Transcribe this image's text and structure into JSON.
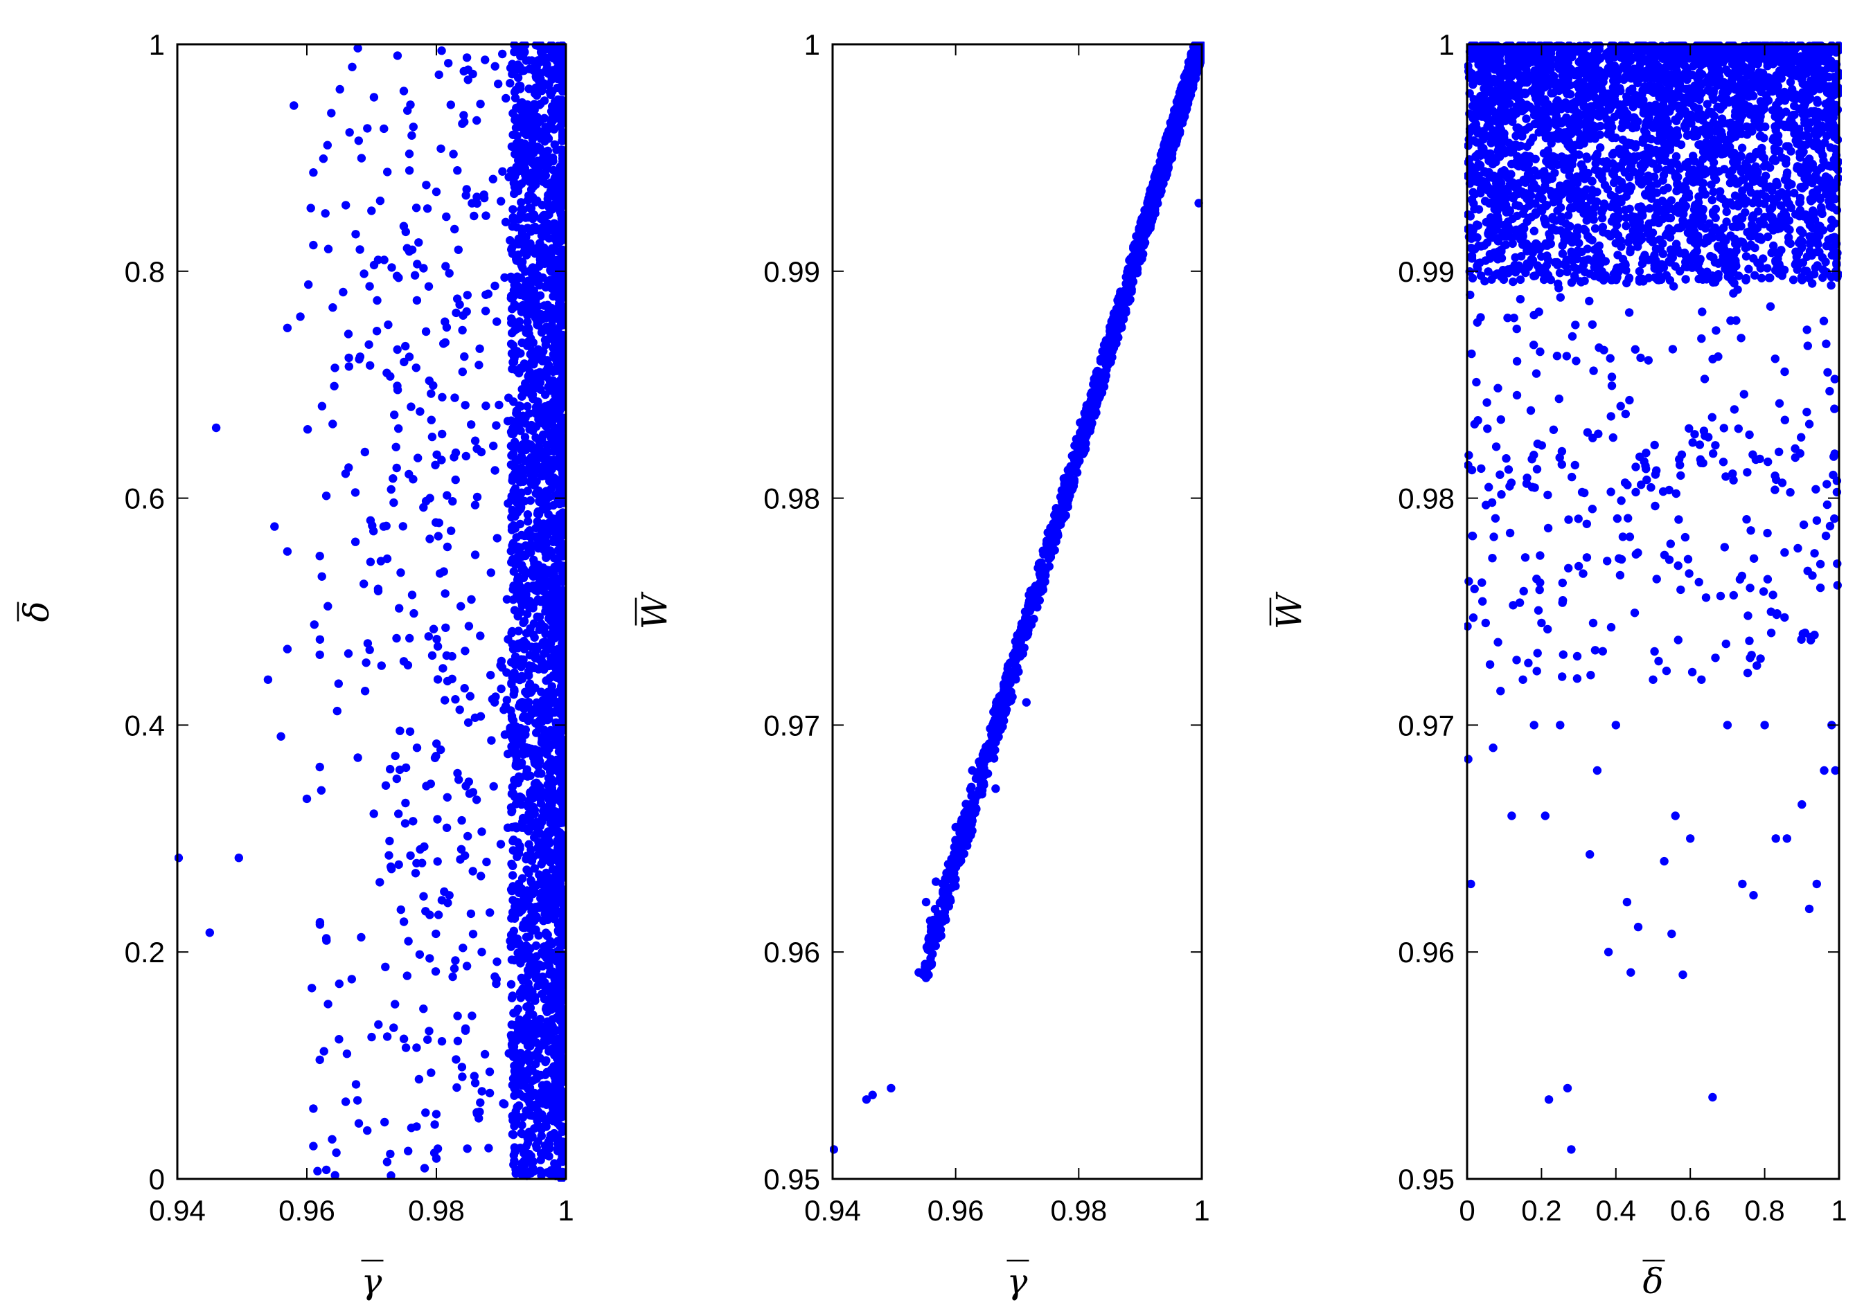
{
  "marker_color": "#0000ff",
  "chart_data": [
    {
      "type": "scatter",
      "xlabel": "γ",
      "ylabel": "δ",
      "xlabel_overbar": true,
      "ylabel_overbar": true,
      "xlim": [
        0.94,
        1.0
      ],
      "ylim": [
        0.0,
        1.0
      ],
      "xticks": [
        0.94,
        0.96,
        0.98,
        1.0
      ],
      "xtick_labels": [
        "0.94",
        "0.96",
        "0.98",
        "1"
      ],
      "yticks": [
        0.0,
        0.2,
        0.4,
        0.6,
        0.8,
        1.0
      ],
      "ytick_labels": [
        "0",
        "0.2",
        "0.4",
        "0.6",
        "0.8",
        "1"
      ],
      "grid": false,
      "distribution": "points dense for γ above 0.985 across full δ range, sparse toward 0.95",
      "points": [
        [
          0.9402,
          0.283
        ],
        [
          0.945,
          0.217
        ],
        [
          0.946,
          0.662
        ],
        [
          0.9495,
          0.283
        ],
        [
          0.954,
          0.44
        ],
        [
          0.955,
          0.575
        ],
        [
          0.956,
          0.39
        ],
        [
          0.957,
          0.467
        ],
        [
          0.957,
          0.553
        ],
        [
          0.957,
          0.75
        ],
        [
          0.958,
          0.946
        ],
        [
          0.959,
          0.76
        ],
        [
          0.96,
          0.335
        ],
        [
          0.961,
          0.062
        ],
        [
          0.961,
          0.823
        ],
        [
          0.961,
          0.887
        ],
        [
          0.962,
          0.549
        ],
        [
          0.962,
          0.462
        ],
        [
          0.962,
          0.363
        ],
        [
          0.962,
          0.105
        ],
        [
          0.963,
          0.602
        ],
        [
          0.963,
          0.212
        ],
        [
          0.963,
          0.008
        ],
        [
          0.964,
          0.768
        ],
        [
          0.965,
          0.172
        ],
        [
          0.966,
          0.068
        ],
        [
          0.967,
          0.98
        ],
        [
          0.968,
          0.915
        ],
        [
          0.969,
          0.43
        ],
        [
          0.97,
          0.125
        ],
        [
          0.971,
          0.81
        ],
        [
          0.971,
          0.52
        ],
        [
          0.972,
          0.05
        ],
        [
          0.973,
          0.003
        ],
        [
          0.974,
          0.99
        ],
        [
          0.975,
          0.72
        ],
        [
          0.976,
          0.285
        ],
        [
          0.977,
          0.38
        ],
        [
          0.978,
          0.15
        ],
        [
          0.979,
          0.6
        ],
        [
          0.98,
          0.87
        ],
        [
          0.98,
          0.018
        ],
        [
          0.981,
          0.45
        ],
        [
          0.982,
          0.25
        ],
        [
          0.983,
          0.64
        ],
        [
          0.984,
          0.93
        ],
        [
          0.984,
          0.09
        ],
        [
          0.985,
          0.35
        ],
        [
          0.986,
          0.55
        ],
        [
          0.987,
          0.2
        ],
        [
          0.988,
          0.78
        ],
        [
          0.989,
          0.42
        ]
      ]
    },
    {
      "type": "scatter",
      "xlabel": "γ",
      "ylabel": "W",
      "xlabel_overbar": true,
      "ylabel_overbar": true,
      "xlim": [
        0.94,
        1.0
      ],
      "ylim": [
        0.95,
        1.0
      ],
      "xticks": [
        0.94,
        0.96,
        0.98,
        1.0
      ],
      "xtick_labels": [
        "0.94",
        "0.96",
        "0.98",
        "1"
      ],
      "yticks": [
        0.95,
        0.96,
        0.97,
        0.98,
        0.99,
        1.0
      ],
      "ytick_labels": [
        "0.95",
        "0.96",
        "0.97",
        "0.98",
        "0.99",
        "1"
      ],
      "grid": false,
      "distribution": "points along a narrow band from (0.955, 0.959) to (1, 1)",
      "points": [
        [
          0.9402,
          0.9513
        ],
        [
          0.9455,
          0.9535
        ],
        [
          0.9465,
          0.9537
        ],
        [
          0.9495,
          0.954
        ],
        [
          0.954,
          0.9591
        ],
        [
          0.9547,
          0.959
        ],
        [
          0.9552,
          0.9622
        ],
        [
          0.956,
          0.9609
        ],
        [
          0.9568,
          0.9631
        ],
        [
          0.9585,
          0.9625
        ],
        [
          0.96,
          0.9655
        ],
        [
          0.962,
          0.966
        ],
        [
          0.9627,
          0.968
        ],
        [
          0.9645,
          0.9685
        ],
        [
          0.966,
          0.97
        ],
        [
          0.9665,
          0.9672
        ],
        [
          0.9685,
          0.971
        ],
        [
          0.9715,
          0.971
        ],
        [
          0.99,
          0.9906
        ],
        [
          0.9995,
          0.993
        ]
      ]
    },
    {
      "type": "scatter",
      "xlabel": "δ",
      "ylabel": "W",
      "xlabel_overbar": true,
      "ylabel_overbar": true,
      "xlim": [
        0.0,
        1.0
      ],
      "ylim": [
        0.95,
        1.0
      ],
      "xticks": [
        0.0,
        0.2,
        0.4,
        0.6,
        0.8,
        1.0
      ],
      "xtick_labels": [
        "0",
        "0.2",
        "0.4",
        "0.6",
        "0.8",
        "1"
      ],
      "yticks": [
        0.95,
        0.96,
        0.97,
        0.98,
        0.99,
        1.0
      ],
      "ytick_labels": [
        "0.95",
        "0.96",
        "0.97",
        "0.98",
        "0.99",
        "1"
      ],
      "grid": false,
      "distribution": "points dense for W above 0.99 across full δ range, sparse toward 0.95",
      "points": [
        [
          0.003,
          0.9685
        ],
        [
          0.01,
          0.963
        ],
        [
          0.02,
          0.976
        ],
        [
          0.05,
          0.9745
        ],
        [
          0.07,
          0.969
        ],
        [
          0.09,
          0.9715
        ],
        [
          0.12,
          0.966
        ],
        [
          0.15,
          0.972
        ],
        [
          0.18,
          0.97
        ],
        [
          0.2,
          0.9745
        ],
        [
          0.21,
          0.966
        ],
        [
          0.22,
          0.9535
        ],
        [
          0.25,
          0.97
        ],
        [
          0.27,
          0.954
        ],
        [
          0.28,
          0.9513
        ],
        [
          0.3,
          0.977
        ],
        [
          0.33,
          0.9643
        ],
        [
          0.35,
          0.968
        ],
        [
          0.38,
          0.96
        ],
        [
          0.4,
          0.97
        ],
        [
          0.43,
          0.9622
        ],
        [
          0.44,
          0.9591
        ],
        [
          0.46,
          0.9611
        ],
        [
          0.5,
          0.972
        ],
        [
          0.53,
          0.964
        ],
        [
          0.55,
          0.9608
        ],
        [
          0.56,
          0.966
        ],
        [
          0.58,
          0.959
        ],
        [
          0.6,
          0.965
        ],
        [
          0.63,
          0.972
        ],
        [
          0.66,
          0.9536
        ],
        [
          0.7,
          0.97
        ],
        [
          0.74,
          0.963
        ],
        [
          0.77,
          0.9625
        ],
        [
          0.8,
          0.97
        ],
        [
          0.83,
          0.965
        ],
        [
          0.86,
          0.965
        ],
        [
          0.9,
          0.9665
        ],
        [
          0.92,
          0.9619
        ],
        [
          0.94,
          0.963
        ],
        [
          0.96,
          0.968
        ],
        [
          0.98,
          0.97
        ],
        [
          0.99,
          0.968
        ]
      ]
    }
  ]
}
